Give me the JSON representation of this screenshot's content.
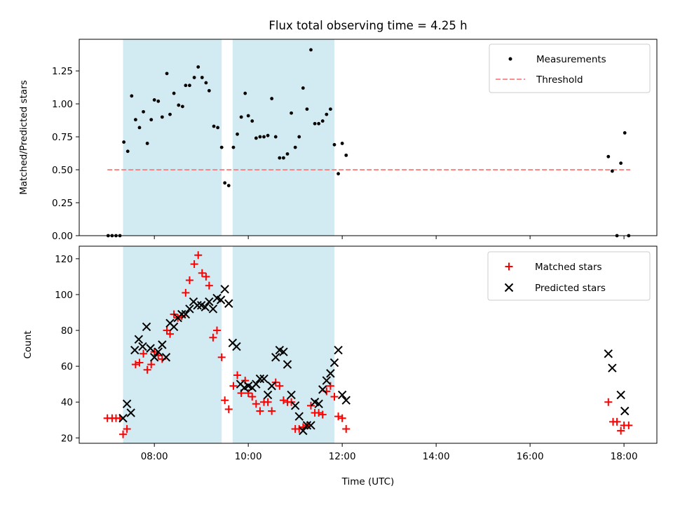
{
  "figure": {
    "title": "Flux total observing time = 4.25 h",
    "xlabel": "Time (UTC)",
    "x_ticks": [
      "08:00",
      "10:00",
      "12:00",
      "14:00",
      "16:00",
      "18:00"
    ]
  },
  "chart_data": [
    {
      "type": "scatter",
      "ylabel": "Matched/Predicted stars",
      "xlim_hours": [
        6.4,
        18.7
      ],
      "ylim": [
        0.0,
        1.49
      ],
      "y_ticks": [
        "0.00",
        "0.25",
        "0.50",
        "0.75",
        "1.00",
        "1.25"
      ],
      "legend_position": "top-right",
      "legend": [
        "Measurements",
        "Threshold"
      ],
      "shaded_periods": [
        [
          "07:20",
          "09:26"
        ],
        [
          "09:40",
          "11:50"
        ]
      ],
      "shade_color": "#add8e6",
      "threshold": {
        "y": 0.5,
        "x_start": "07:00",
        "x_end": "18:08",
        "color": "#ff7f7f"
      },
      "measurements": [
        {
          "x": "07:01",
          "y": 0.0
        },
        {
          "x": "07:06",
          "y": 0.0
        },
        {
          "x": "07:11",
          "y": 0.0
        },
        {
          "x": "07:16",
          "y": 0.0
        },
        {
          "x": "07:21",
          "y": 0.71
        },
        {
          "x": "07:26",
          "y": 0.64
        },
        {
          "x": "07:31",
          "y": 1.06
        },
        {
          "x": "07:36",
          "y": 0.88
        },
        {
          "x": "07:41",
          "y": 0.82
        },
        {
          "x": "07:46",
          "y": 0.94
        },
        {
          "x": "07:51",
          "y": 0.7
        },
        {
          "x": "07:56",
          "y": 0.88
        },
        {
          "x": "08:00",
          "y": 1.03
        },
        {
          "x": "08:05",
          "y": 1.02
        },
        {
          "x": "08:10",
          "y": 0.9
        },
        {
          "x": "08:16",
          "y": 1.23
        },
        {
          "x": "08:20",
          "y": 0.92
        },
        {
          "x": "08:25",
          "y": 1.08
        },
        {
          "x": "08:31",
          "y": 0.99
        },
        {
          "x": "08:36",
          "y": 0.98
        },
        {
          "x": "08:40",
          "y": 1.14
        },
        {
          "x": "08:45",
          "y": 1.14
        },
        {
          "x": "08:51",
          "y": 1.2
        },
        {
          "x": "08:56",
          "y": 1.28
        },
        {
          "x": "09:01",
          "y": 1.2
        },
        {
          "x": "09:06",
          "y": 1.16
        },
        {
          "x": "09:10",
          "y": 1.1
        },
        {
          "x": "09:16",
          "y": 0.83
        },
        {
          "x": "09:21",
          "y": 0.82
        },
        {
          "x": "09:26",
          "y": 0.67
        },
        {
          "x": "09:30",
          "y": 0.4
        },
        {
          "x": "09:35",
          "y": 0.38
        },
        {
          "x": "09:41",
          "y": 0.67
        },
        {
          "x": "09:46",
          "y": 0.77
        },
        {
          "x": "09:51",
          "y": 0.9
        },
        {
          "x": "09:56",
          "y": 1.08
        },
        {
          "x": "10:00",
          "y": 0.91
        },
        {
          "x": "10:05",
          "y": 0.87
        },
        {
          "x": "10:10",
          "y": 0.74
        },
        {
          "x": "10:15",
          "y": 0.75
        },
        {
          "x": "10:20",
          "y": 0.75
        },
        {
          "x": "10:25",
          "y": 0.76
        },
        {
          "x": "10:30",
          "y": 1.04
        },
        {
          "x": "10:35",
          "y": 0.75
        },
        {
          "x": "10:40",
          "y": 0.59
        },
        {
          "x": "10:45",
          "y": 0.59
        },
        {
          "x": "10:50",
          "y": 0.62
        },
        {
          "x": "10:55",
          "y": 0.93
        },
        {
          "x": "11:00",
          "y": 0.67
        },
        {
          "x": "11:05",
          "y": 0.75
        },
        {
          "x": "11:10",
          "y": 1.12
        },
        {
          "x": "11:15",
          "y": 0.96
        },
        {
          "x": "11:20",
          "y": 1.41
        },
        {
          "x": "11:25",
          "y": 0.85
        },
        {
          "x": "11:30",
          "y": 0.85
        },
        {
          "x": "11:35",
          "y": 0.87
        },
        {
          "x": "11:40",
          "y": 0.92
        },
        {
          "x": "11:45",
          "y": 0.96
        },
        {
          "x": "11:50",
          "y": 0.69
        },
        {
          "x": "11:55",
          "y": 0.47
        },
        {
          "x": "12:00",
          "y": 0.7
        },
        {
          "x": "12:05",
          "y": 0.61
        },
        {
          "x": "17:40",
          "y": 0.6
        },
        {
          "x": "17:45",
          "y": 0.49
        },
        {
          "x": "17:51",
          "y": 0.0
        },
        {
          "x": "17:56",
          "y": 0.55
        },
        {
          "x": "18:01",
          "y": 0.78
        },
        {
          "x": "18:06",
          "y": 0.0
        }
      ]
    },
    {
      "type": "scatter",
      "ylabel": "Count",
      "xlim_hours": [
        6.4,
        18.7
      ],
      "ylim": [
        17,
        127
      ],
      "y_ticks": [
        "20",
        "40",
        "60",
        "80",
        "100",
        "120"
      ],
      "legend_position": "top-right",
      "legend": [
        "Matched stars",
        "Predicted stars"
      ],
      "shaded_periods": [
        [
          "07:20",
          "09:26"
        ],
        [
          "09:40",
          "11:50"
        ]
      ],
      "shade_color": "#add8e6",
      "series": [
        {
          "name": "Matched stars",
          "marker": "plus",
          "color": "#ff0000",
          "points": [
            {
              "x": "07:00",
              "y": 31
            },
            {
              "x": "07:06",
              "y": 31
            },
            {
              "x": "07:11",
              "y": 31
            },
            {
              "x": "07:16",
              "y": 31
            },
            {
              "x": "07:20",
              "y": 22
            },
            {
              "x": "07:25",
              "y": 25
            },
            {
              "x": "07:36",
              "y": 61
            },
            {
              "x": "07:41",
              "y": 62
            },
            {
              "x": "07:46",
              "y": 67
            },
            {
              "x": "07:51",
              "y": 58
            },
            {
              "x": "07:56",
              "y": 61
            },
            {
              "x": "08:00",
              "y": 68
            },
            {
              "x": "08:05",
              "y": 66
            },
            {
              "x": "08:10",
              "y": 64
            },
            {
              "x": "08:16",
              "y": 80
            },
            {
              "x": "08:20",
              "y": 78
            },
            {
              "x": "08:25",
              "y": 89
            },
            {
              "x": "08:30",
              "y": 87
            },
            {
              "x": "08:35",
              "y": 88
            },
            {
              "x": "08:40",
              "y": 101
            },
            {
              "x": "08:45",
              "y": 108
            },
            {
              "x": "08:51",
              "y": 117
            },
            {
              "x": "08:56",
              "y": 122
            },
            {
              "x": "09:01",
              "y": 112
            },
            {
              "x": "09:06",
              "y": 110
            },
            {
              "x": "09:10",
              "y": 105
            },
            {
              "x": "09:15",
              "y": 76
            },
            {
              "x": "09:20",
              "y": 80
            },
            {
              "x": "09:26",
              "y": 65
            },
            {
              "x": "09:30",
              "y": 41
            },
            {
              "x": "09:35",
              "y": 36
            },
            {
              "x": "09:41",
              "y": 49
            },
            {
              "x": "09:46",
              "y": 55
            },
            {
              "x": "09:51",
              "y": 45
            },
            {
              "x": "09:56",
              "y": 52
            },
            {
              "x": "10:00",
              "y": 45
            },
            {
              "x": "10:05",
              "y": 43
            },
            {
              "x": "10:10",
              "y": 39
            },
            {
              "x": "10:15",
              "y": 35
            },
            {
              "x": "10:20",
              "y": 40
            },
            {
              "x": "10:25",
              "y": 40
            },
            {
              "x": "10:30",
              "y": 35
            },
            {
              "x": "10:35",
              "y": 51
            },
            {
              "x": "10:40",
              "y": 49
            },
            {
              "x": "10:45",
              "y": 41
            },
            {
              "x": "10:50",
              "y": 40
            },
            {
              "x": "10:55",
              "y": 40
            },
            {
              "x": "11:00",
              "y": 25
            },
            {
              "x": "11:05",
              "y": 25
            },
            {
              "x": "11:10",
              "y": 26
            },
            {
              "x": "11:15",
              "y": 27
            },
            {
              "x": "11:20",
              "y": 38
            },
            {
              "x": "11:25",
              "y": 34
            },
            {
              "x": "11:30",
              "y": 34
            },
            {
              "x": "11:35",
              "y": 33
            },
            {
              "x": "11:40",
              "y": 46
            },
            {
              "x": "11:45",
              "y": 49
            },
            {
              "x": "11:50",
              "y": 43
            },
            {
              "x": "11:55",
              "y": 32
            },
            {
              "x": "12:00",
              "y": 31
            },
            {
              "x": "12:05",
              "y": 25
            },
            {
              "x": "17:40",
              "y": 40
            },
            {
              "x": "17:46",
              "y": 29
            },
            {
              "x": "17:51",
              "y": 29
            },
            {
              "x": "17:56",
              "y": 24
            },
            {
              "x": "18:00",
              "y": 27
            },
            {
              "x": "18:06",
              "y": 27
            }
          ]
        },
        {
          "name": "Predicted stars",
          "marker": "x",
          "color": "#000000",
          "points": [
            {
              "x": "07:20",
              "y": 31
            },
            {
              "x": "07:25",
              "y": 39
            },
            {
              "x": "07:30",
              "y": 34
            },
            {
              "x": "07:35",
              "y": 69
            },
            {
              "x": "07:40",
              "y": 75
            },
            {
              "x": "07:45",
              "y": 71
            },
            {
              "x": "07:50",
              "y": 82
            },
            {
              "x": "07:55",
              "y": 70
            },
            {
              "x": "08:00",
              "y": 65
            },
            {
              "x": "08:05",
              "y": 68
            },
            {
              "x": "08:10",
              "y": 72
            },
            {
              "x": "08:15",
              "y": 65
            },
            {
              "x": "08:20",
              "y": 84
            },
            {
              "x": "08:25",
              "y": 82
            },
            {
              "x": "08:30",
              "y": 87
            },
            {
              "x": "08:35",
              "y": 89
            },
            {
              "x": "08:40",
              "y": 89
            },
            {
              "x": "08:45",
              "y": 92
            },
            {
              "x": "08:50",
              "y": 96
            },
            {
              "x": "08:55",
              "y": 94
            },
            {
              "x": "09:00",
              "y": 94
            },
            {
              "x": "09:05",
              "y": 93
            },
            {
              "x": "09:10",
              "y": 96
            },
            {
              "x": "09:15",
              "y": 92
            },
            {
              "x": "09:20",
              "y": 98
            },
            {
              "x": "09:25",
              "y": 97
            },
            {
              "x": "09:30",
              "y": 103
            },
            {
              "x": "09:35",
              "y": 95
            },
            {
              "x": "09:40",
              "y": 73
            },
            {
              "x": "09:45",
              "y": 71
            },
            {
              "x": "09:50",
              "y": 50
            },
            {
              "x": "09:55",
              "y": 48
            },
            {
              "x": "10:00",
              "y": 49
            },
            {
              "x": "10:05",
              "y": 48
            },
            {
              "x": "10:10",
              "y": 50
            },
            {
              "x": "10:15",
              "y": 53
            },
            {
              "x": "10:20",
              "y": 53
            },
            {
              "x": "10:25",
              "y": 44
            },
            {
              "x": "10:30",
              "y": 49
            },
            {
              "x": "10:35",
              "y": 65
            },
            {
              "x": "10:40",
              "y": 69
            },
            {
              "x": "10:45",
              "y": 68
            },
            {
              "x": "10:50",
              "y": 61
            },
            {
              "x": "10:55",
              "y": 44
            },
            {
              "x": "11:00",
              "y": 38
            },
            {
              "x": "11:05",
              "y": 32
            },
            {
              "x": "11:10",
              "y": 24
            },
            {
              "x": "11:15",
              "y": 27
            },
            {
              "x": "11:20",
              "y": 27
            },
            {
              "x": "11:25",
              "y": 40
            },
            {
              "x": "11:30",
              "y": 39
            },
            {
              "x": "11:35",
              "y": 47
            },
            {
              "x": "11:40",
              "y": 52
            },
            {
              "x": "11:45",
              "y": 56
            },
            {
              "x": "11:50",
              "y": 62
            },
            {
              "x": "11:55",
              "y": 69
            },
            {
              "x": "12:00",
              "y": 44
            },
            {
              "x": "12:05",
              "y": 41
            },
            {
              "x": "17:40",
              "y": 67
            },
            {
              "x": "17:45",
              "y": 59
            },
            {
              "x": "17:56",
              "y": 44
            },
            {
              "x": "18:01",
              "y": 35
            }
          ]
        }
      ]
    }
  ]
}
